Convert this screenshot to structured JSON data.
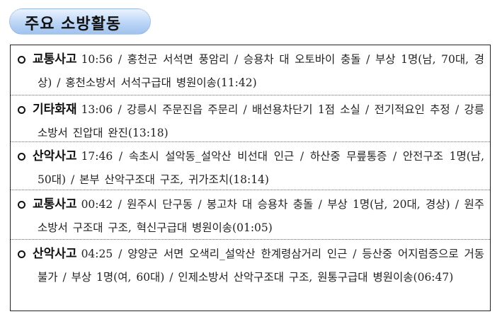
{
  "section_title": "주요 소방활동",
  "items": [
    {
      "category": "교통사고",
      "text": "10:56 / 홍천군 서석면 풍암리 / 승용차 대 오토바이 충돌 / 부상 1명(남, 70대, 경상) / 홍천소방서 서석구급대 병원이송(11:42)"
    },
    {
      "category": "기타화재",
      "text": "13:06 / 강릉시 주문진읍 주문리 / 배선용차단기 1점 소실 / 전기적요인 추정 / 강릉소방서 진압대 완진(13:18)"
    },
    {
      "category": "산악사고",
      "text": "17:46 / 속초시 설악동_설악산 비선대 인근 / 하산중 무릎통증 / 안전구조 1명(남, 50대) / 본부 산악구조대 구조, 귀가조치(18:14)"
    },
    {
      "category": "교통사고",
      "text": "00:42 / 원주시 단구동 / 봉고차 대 승용차 충돌 / 부상 1명(남, 20대, 경상) / 원주소방서 구조대 구조, 혁신구급대 병원이송(01:05)"
    },
    {
      "category": "산악사고",
      "text": "04:25 / 양양군 서면 오색리_설악산 한계령삼거리 인근 / 등산중 어지럼증으로 거동불가 / 부상 1명(여, 60대) / 인제소방서 산악구조대 구조, 원통구급대 병원이송(06:47)"
    }
  ]
}
